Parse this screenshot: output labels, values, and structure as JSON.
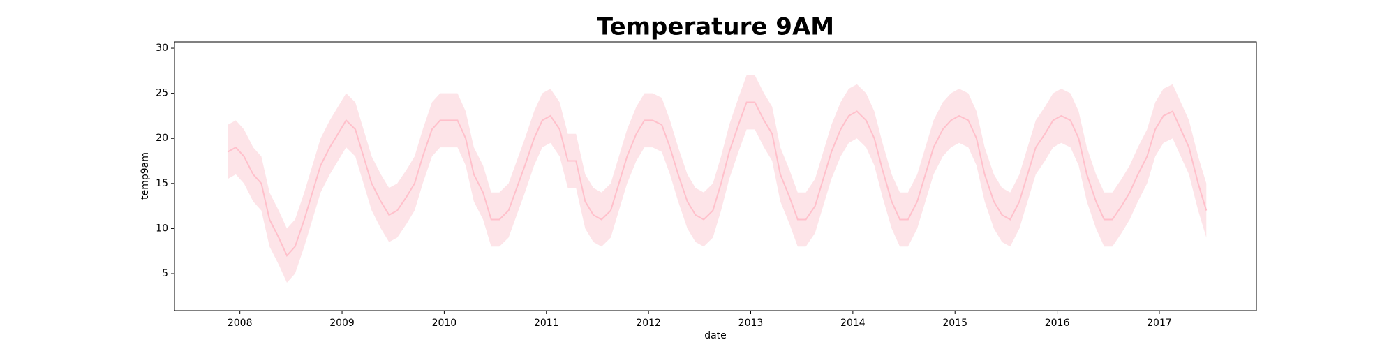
{
  "chart_data": {
    "type": "line",
    "title": "Temperature 9AM",
    "x_label": "date",
    "y_label": "temp9am",
    "x": [
      2007.88,
      2007.96,
      2008.04,
      2008.13,
      2008.21,
      2008.29,
      2008.38,
      2008.46,
      2008.54,
      2008.63,
      2008.71,
      2008.79,
      2008.88,
      2008.96,
      2009.04,
      2009.13,
      2009.21,
      2009.29,
      2009.38,
      2009.46,
      2009.54,
      2009.63,
      2009.71,
      2009.79,
      2009.88,
      2009.96,
      2010.04,
      2010.13,
      2010.21,
      2010.29,
      2010.38,
      2010.46,
      2010.54,
      2010.63,
      2010.71,
      2010.79,
      2010.88,
      2010.96,
      2011.04,
      2011.13,
      2011.21,
      2011.29,
      2011.38,
      2011.46,
      2011.54,
      2011.63,
      2011.71,
      2011.79,
      2011.88,
      2011.96,
      2012.04,
      2012.13,
      2012.21,
      2012.29,
      2012.38,
      2012.46,
      2012.54,
      2012.63,
      2012.71,
      2012.79,
      2012.88,
      2012.96,
      2013.04,
      2013.13,
      2013.21,
      2013.29,
      2013.38,
      2013.46,
      2013.54,
      2013.63,
      2013.71,
      2013.79,
      2013.88,
      2013.96,
      2014.04,
      2014.13,
      2014.21,
      2014.29,
      2014.38,
      2014.46,
      2014.54,
      2014.63,
      2014.71,
      2014.79,
      2014.88,
      2014.96,
      2015.04,
      2015.13,
      2015.21,
      2015.29,
      2015.38,
      2015.46,
      2015.54,
      2015.63,
      2015.71,
      2015.79,
      2015.88,
      2015.96,
      2016.04,
      2016.13,
      2016.21,
      2016.29,
      2016.38,
      2016.46,
      2016.54,
      2016.63,
      2016.71,
      2016.79,
      2016.88,
      2016.96,
      2017.04,
      2017.13,
      2017.21,
      2017.29,
      2017.38,
      2017.46
    ],
    "series": [
      {
        "color": "#ffc0cb",
        "band_color": "#fde4e8",
        "values": [
          18.5,
          19,
          18,
          16,
          15,
          11,
          9,
          7,
          8,
          11,
          14,
          17,
          19,
          20.5,
          22,
          21,
          18,
          15,
          13,
          11.5,
          12,
          13.5,
          15,
          18,
          21,
          22,
          22,
          22,
          20,
          16,
          14,
          11,
          11,
          12,
          14.5,
          17,
          20,
          22,
          22.5,
          21,
          17.5,
          17.5,
          13,
          11.5,
          11,
          12,
          15,
          18,
          20.5,
          22,
          22,
          21.5,
          19,
          16,
          13,
          11.5,
          11,
          12,
          15,
          18.5,
          21.5,
          24,
          24,
          22,
          20.5,
          16,
          13.5,
          11,
          11,
          12.5,
          15.5,
          18.5,
          21,
          22.5,
          23,
          22,
          20,
          16.5,
          13,
          11,
          11,
          13,
          16,
          19,
          21,
          22,
          22.5,
          22,
          20,
          16,
          13,
          11.5,
          11,
          13,
          16,
          19,
          20.5,
          22,
          22.5,
          22,
          20,
          16,
          13,
          11,
          11,
          12.5,
          14,
          16,
          18,
          21,
          22.5,
          23,
          21,
          19,
          15,
          12
        ],
        "lower": [
          15.5,
          16,
          15,
          13,
          12,
          8,
          6,
          4,
          5,
          8,
          11,
          14,
          16,
          17.5,
          19,
          18,
          15,
          12,
          10,
          8.5,
          9,
          10.5,
          12,
          15,
          18,
          19,
          19,
          19,
          17,
          13,
          11,
          8,
          8,
          9,
          11.5,
          14,
          17,
          19,
          19.5,
          18,
          14.5,
          14.5,
          10,
          8.5,
          8,
          9,
          12,
          15,
          17.5,
          19,
          19,
          18.5,
          16,
          13,
          10,
          8.5,
          8,
          9,
          12,
          15.5,
          18.5,
          21,
          21,
          19,
          17.5,
          13,
          10.5,
          8,
          8,
          9.5,
          12.5,
          15.5,
          18,
          19.5,
          20,
          19,
          17,
          13.5,
          10,
          8,
          8,
          10,
          13,
          16,
          18,
          19,
          19.5,
          19,
          17,
          13,
          10,
          8.5,
          8,
          10,
          13,
          16,
          17.5,
          19,
          19.5,
          19,
          17,
          13,
          10,
          8,
          8,
          9.5,
          11,
          13,
          15,
          18,
          19.5,
          20,
          18,
          16,
          12,
          9
        ],
        "upper": [
          21.5,
          22,
          21,
          19,
          18,
          14,
          12,
          10,
          11,
          14,
          17,
          20,
          22,
          23.5,
          25,
          24,
          21,
          18,
          16,
          14.5,
          15,
          16.5,
          18,
          21,
          24,
          25,
          25,
          25,
          23,
          19,
          17,
          14,
          14,
          15,
          17.5,
          20,
          23,
          25,
          25.5,
          24,
          20.5,
          20.5,
          16,
          14.5,
          14,
          15,
          18,
          21,
          23.5,
          25,
          25,
          24.5,
          22,
          19,
          16,
          14.5,
          14,
          15,
          18,
          21.5,
          24.5,
          27,
          27,
          25,
          23.5,
          19,
          16.5,
          14,
          14,
          15.5,
          18.5,
          21.5,
          24,
          25.5,
          26,
          25,
          23,
          19.5,
          16,
          14,
          14,
          16,
          19,
          22,
          24,
          25,
          25.5,
          25,
          23,
          19,
          16,
          14.5,
          14,
          16,
          19,
          22,
          23.5,
          25,
          25.5,
          25,
          23,
          19,
          16,
          14,
          14,
          15.5,
          17,
          19,
          21,
          24,
          25.5,
          26,
          24,
          22,
          18,
          15
        ]
      }
    ],
    "xlim": [
      2007.36,
      2017.95
    ],
    "ylim": [
      0.9,
      30.7
    ],
    "xticks": [
      2008,
      2009,
      2010,
      2011,
      2012,
      2013,
      2014,
      2015,
      2016,
      2017
    ],
    "yticks": [
      5,
      10,
      15,
      20,
      25,
      30
    ]
  }
}
